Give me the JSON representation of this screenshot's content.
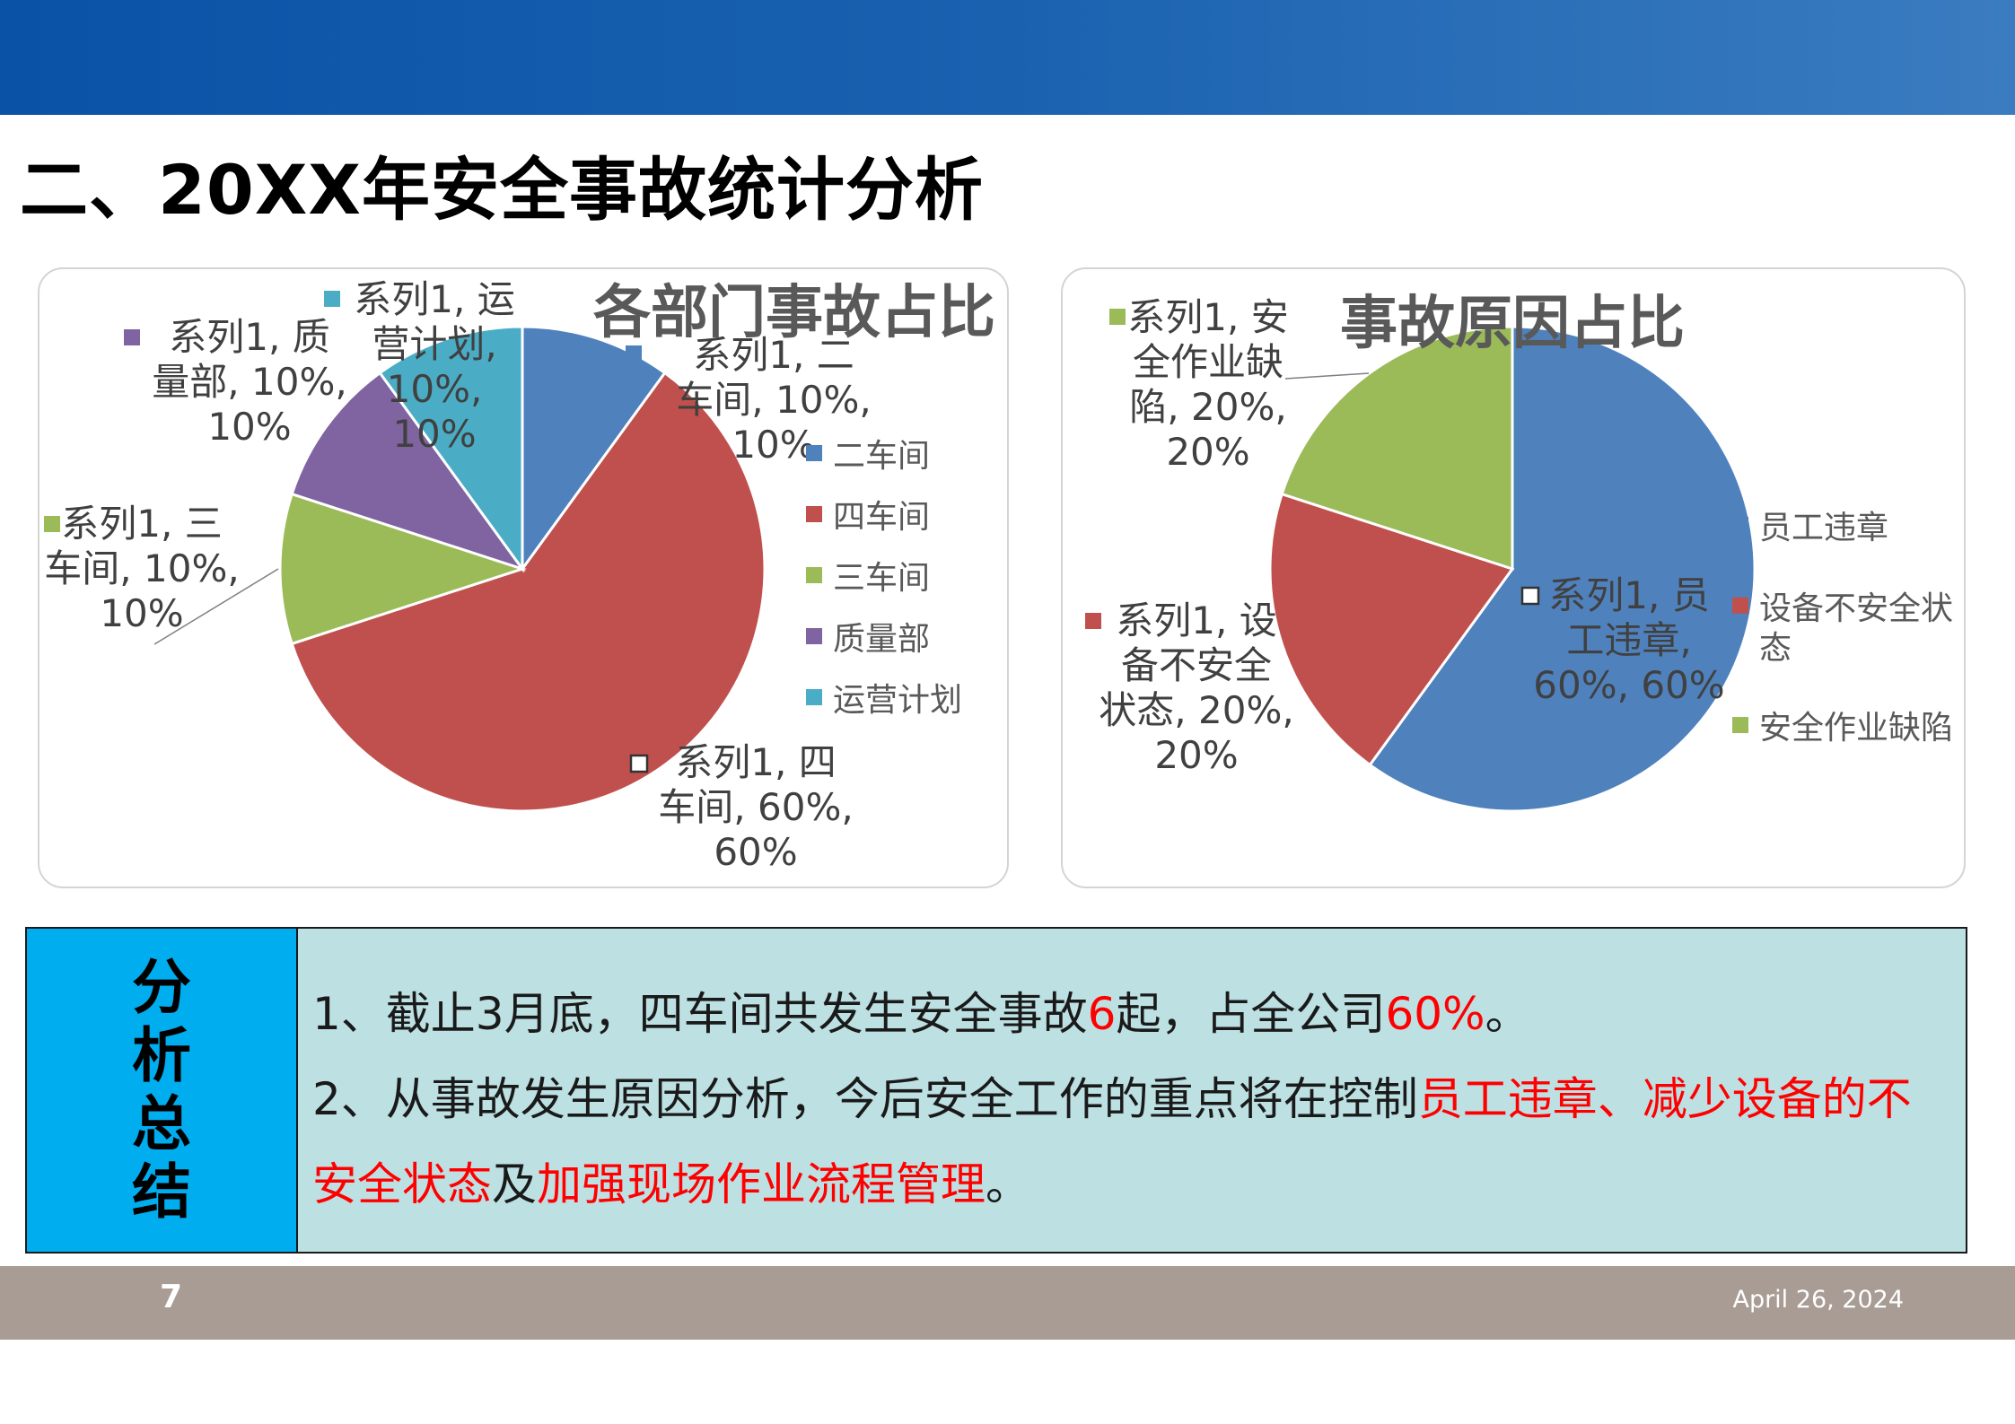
{
  "slide": {
    "title": "二、20XX年安全事故统计分析",
    "page_number": "7",
    "date": "April 26, 2024"
  },
  "chart_data": [
    {
      "type": "pie",
      "title": "各部门事故占比",
      "series_name": "系列1",
      "categories": [
        "二车间",
        "四车间",
        "三车间",
        "质量部",
        "运营计划"
      ],
      "values": [
        10,
        60,
        10,
        10,
        10
      ],
      "colors": [
        "#4f81bd",
        "#c0504d",
        "#9bbb59",
        "#8064a2",
        "#4bacc6"
      ],
      "data_labels": [
        [
          "系列1, 二",
          "车间, 10%,",
          "10%"
        ],
        [
          "系列1, 四",
          "车间, 60%,",
          "60%"
        ],
        [
          "系列1, 三",
          "车间, 10%,",
          "10%"
        ],
        [
          "系列1, 质",
          "量部, 10%,",
          "10%"
        ],
        [
          "系列1, 运",
          "营计划,",
          "10%,",
          "10%"
        ]
      ],
      "legend": {
        "position": "right",
        "entries": [
          "二车间",
          "四车间",
          "三车间",
          "质量部",
          "运营计划"
        ]
      }
    },
    {
      "type": "pie",
      "title": "事故原因占比",
      "series_name": "系列1",
      "categories": [
        "员工违章",
        "设备不安全状态",
        "安全作业缺陷"
      ],
      "values": [
        60,
        20,
        20
      ],
      "colors": [
        "#4f81bd",
        "#c0504d",
        "#9bbb59"
      ],
      "data_labels": [
        [
          "系列1, 员",
          "工违章,",
          "60%, 60%"
        ],
        [
          "系列1, 设",
          "备不安全",
          "状态, 20%,",
          "20%"
        ],
        [
          "系列1, 安",
          "全作业缺",
          "陷, 20%,",
          "20%"
        ]
      ],
      "legend": {
        "position": "right",
        "entries": [
          [
            "员工违章"
          ],
          [
            "设备不安全状",
            "态"
          ],
          [
            "安全作业缺陷"
          ]
        ]
      }
    }
  ],
  "summary": {
    "heading": [
      "分",
      "析",
      "总",
      "结"
    ],
    "point1": {
      "a": "1、截止3月底，四车间共发生安全事故",
      "b": "6",
      "c": "起，占全公司",
      "d": "60%",
      "e": "。"
    },
    "point2": {
      "a": "2、从事故发生原因分析，今后安全工作的重点将在控制",
      "b": "员工违章",
      "c": "、",
      "d": "减少设备的不安全状态",
      "e": "及",
      "f": "加强现场作业流程管理",
      "g": "。"
    }
  }
}
